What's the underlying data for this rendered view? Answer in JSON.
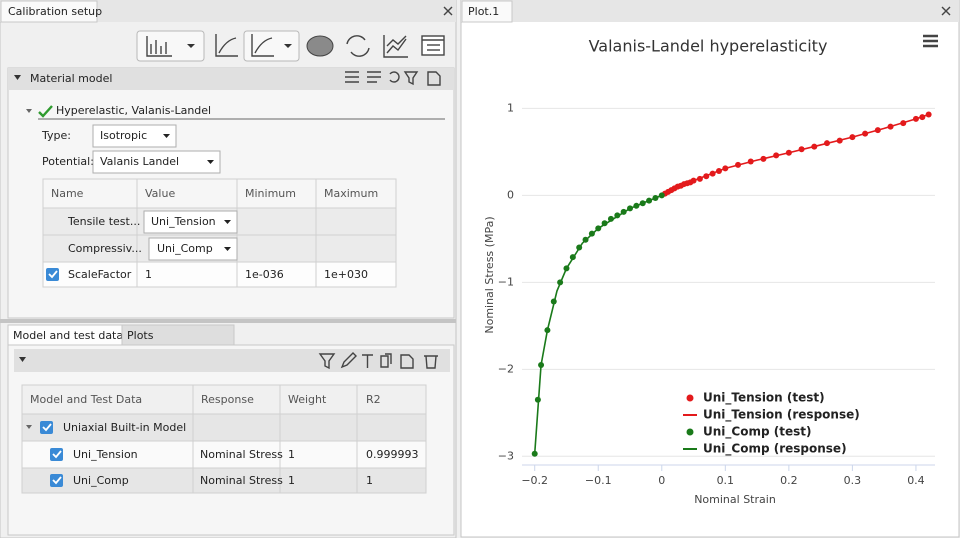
{
  "calibration_panel": {
    "tab_title": "Calibration setup",
    "material_model": {
      "header": "Material model",
      "model_name": "Hyperelastic, Valanis-Landel",
      "type_label": "Type:",
      "type_value": "Isotropic",
      "potential_label": "Potential:",
      "potential_value": "Valanis Landel",
      "table": {
        "columns": [
          "Name",
          "Value",
          "Minimum",
          "Maximum"
        ],
        "rows": [
          {
            "name": "Tensile test...",
            "value": "Uni_Tension"
          },
          {
            "name": "Compressiv...",
            "value": "Uni_Comp"
          },
          {
            "name": "ScaleFactor",
            "value": 1,
            "minimum": "1e-036",
            "maximum": "1e+030"
          }
        ]
      }
    },
    "tabs": [
      "Model and test data",
      "Plots"
    ],
    "data_table": {
      "columns": [
        "Model and Test Data",
        "Response",
        "Weight",
        "R2"
      ],
      "group": "Uniaxial Built-in Model",
      "rows": [
        {
          "name": "Uni_Tension",
          "response": "Nominal Stress",
          "weight": 1,
          "r2": 0.999993
        },
        {
          "name": "Uni_Comp",
          "response": "Nominal Stress",
          "weight": 1,
          "r2": 1
        }
      ]
    }
  },
  "plot_panel": {
    "tab_title": "Plot.1"
  },
  "chart_data": {
    "type": "scatter",
    "title": "Valanis-Landel hyperelasticity",
    "x_label": "Nominal Strain",
    "y_label": "Nominal Stress (MPa)",
    "xlim": [
      -0.22,
      0.43
    ],
    "ylim": [
      -3.1,
      1.2
    ],
    "xticks": [
      {
        "value": -0.2,
        "label": "−0.2"
      },
      {
        "value": -0.1,
        "label": "−0.1"
      },
      0,
      0.1,
      0.2,
      0.3,
      0.4
    ],
    "yticks": [
      1,
      0,
      {
        "value": -1,
        "label": "−1"
      },
      {
        "value": -2,
        "label": "−2"
      },
      {
        "value": -3,
        "label": "−3"
      }
    ],
    "grid": true,
    "legend": "lower right",
    "series": [
      {
        "name": "Uni_Tension (test)",
        "color": "#e31a1c",
        "mode": "markers",
        "x": [
          0.005,
          0.01,
          0.015,
          0.02,
          0.025,
          0.03,
          0.035,
          0.04,
          0.045,
          0.05,
          0.06,
          0.07,
          0.08,
          0.09,
          0.1,
          0.12,
          0.14,
          0.16,
          0.18,
          0.2,
          0.22,
          0.24,
          0.26,
          0.28,
          0.3,
          0.32,
          0.34,
          0.36,
          0.38,
          0.4,
          0.41,
          0.42
        ],
        "values": [
          0.02,
          0.04,
          0.06,
          0.08,
          0.1,
          0.11,
          0.13,
          0.14,
          0.15,
          0.17,
          0.19,
          0.22,
          0.25,
          0.28,
          0.31,
          0.35,
          0.39,
          0.42,
          0.46,
          0.49,
          0.53,
          0.56,
          0.6,
          0.63,
          0.67,
          0.71,
          0.75,
          0.79,
          0.83,
          0.88,
          0.9,
          0.93
        ]
      },
      {
        "name": "Uni_Tension (response)",
        "color": "#e31a1c",
        "mode": "line",
        "x": [
          0,
          0.05,
          0.1,
          0.15,
          0.2,
          0.25,
          0.3,
          0.35,
          0.4,
          0.42
        ],
        "values": [
          0,
          0.17,
          0.31,
          0.405,
          0.49,
          0.58,
          0.67,
          0.77,
          0.88,
          0.93
        ]
      },
      {
        "name": "Uni_Comp (test)",
        "color": "#1a7a1a",
        "mode": "markers",
        "x": [
          0,
          -0.01,
          -0.02,
          -0.03,
          -0.04,
          -0.05,
          -0.06,
          -0.07,
          -0.08,
          -0.09,
          -0.1,
          -0.11,
          -0.12,
          -0.13,
          -0.14,
          -0.15,
          -0.16,
          -0.17,
          -0.18,
          -0.19,
          -0.195,
          -0.2
        ],
        "values": [
          0,
          -0.03,
          -0.06,
          -0.09,
          -0.12,
          -0.15,
          -0.19,
          -0.23,
          -0.27,
          -0.32,
          -0.38,
          -0.44,
          -0.51,
          -0.6,
          -0.71,
          -0.84,
          -1.0,
          -1.22,
          -1.55,
          -1.95,
          -2.35,
          -2.97
        ]
      },
      {
        "name": "Uni_Comp (response)",
        "color": "#1a7a1a",
        "mode": "line",
        "x": [
          0,
          -0.05,
          -0.1,
          -0.125,
          -0.15,
          -0.165,
          -0.18,
          -0.19,
          -0.2
        ],
        "values": [
          0,
          -0.15,
          -0.38,
          -0.55,
          -0.84,
          -1.1,
          -1.55,
          -1.95,
          -2.97
        ]
      }
    ]
  }
}
